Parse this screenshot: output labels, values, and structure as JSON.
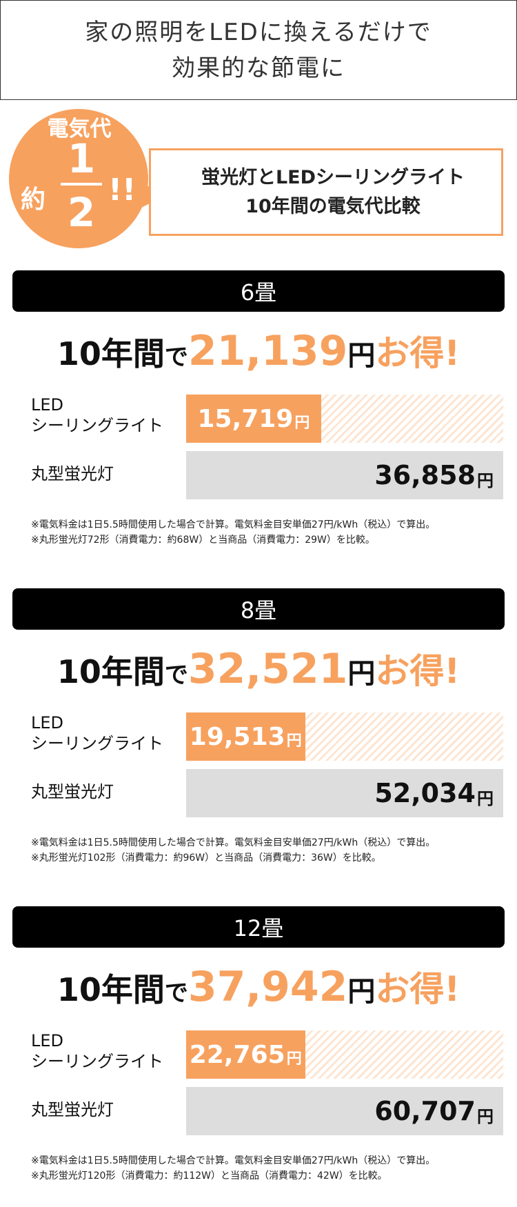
{
  "headline": {
    "line1": "家の照明をLEDに換えるだけで",
    "line2": "効果的な節電に"
  },
  "promo": {
    "badge_label": "電気代",
    "badge_prefix": "約",
    "fraction_numerator": "1",
    "fraction_denominator": "2",
    "badge_suffix": "!!",
    "box_line1": "蛍光灯とLEDシーリングライト",
    "box_line2": "10年間の電気代比較"
  },
  "colors": {
    "accent": "#f7a15f",
    "section_header": "#000000",
    "fluorescent_bar": "#dddddd"
  },
  "saving_prefix": "10年間",
  "saving_particle": "で",
  "yen": "円",
  "otoku": "お得!",
  "led_label_line1": "LED",
  "led_label_line2": "シーリングライト",
  "fluorescent_label": "丸型蛍光灯",
  "sections": [
    {
      "header": "6畳",
      "saving": "21,139",
      "led_value": "15,719",
      "fluorescent_value": "36,858",
      "led_cost": 15719,
      "fluorescent_cost": 36858,
      "note1": "※電気料金は1日5.5時間使用した場合で計算。電気料金目安単価27円/kWh（税込）で算出。",
      "note2": "※丸形蛍光灯72形（消費電力：約68W）と当商品（消費電力：29W）を比較。"
    },
    {
      "header": "8畳",
      "saving": "32,521",
      "led_value": "19,513",
      "fluorescent_value": "52,034",
      "led_cost": 19513,
      "fluorescent_cost": 52034,
      "note1": "※電気料金は1日5.5時間使用した場合で計算。電気料金目安単価27円/kWh（税込）で算出。",
      "note2": "※丸形蛍光灯102形（消費電力：約96W）と当商品（消費電力：36W）を比較。"
    },
    {
      "header": "12畳",
      "saving": "37,942",
      "led_value": "22,765",
      "fluorescent_value": "60,707",
      "led_cost": 22765,
      "fluorescent_cost": 60707,
      "note1": "※電気料金は1日5.5時間使用した場合で計算。電気料金目安単価27円/kWh（税込）で算出。",
      "note2": "※丸形蛍光灯120形（消費電力：約112W）と当商品（消費電力：42W）を比較。"
    }
  ]
}
